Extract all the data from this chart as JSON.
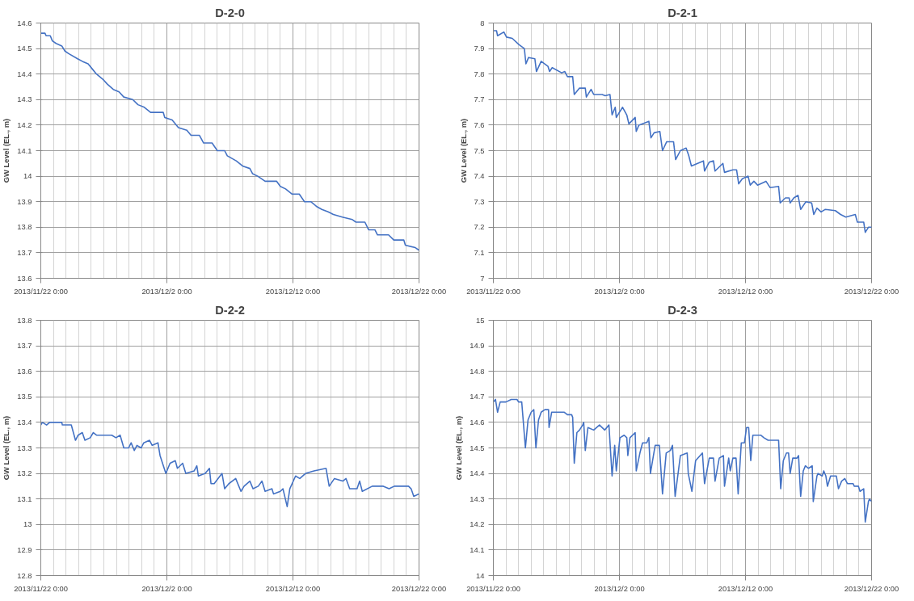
{
  "chart_data": [
    {
      "type": "line",
      "title": "D-2-0",
      "ylabel": "GW Level (EL., m)",
      "grid": true,
      "xlim": [
        "2013-11-22",
        "2013-12-22"
      ],
      "xticks": [
        {
          "value": "2013-11-22",
          "label": "2013/11/22 0:00"
        },
        {
          "value": "2013-12-02",
          "label": "2013/12/2 0:00"
        },
        {
          "value": "2013-12-12",
          "label": "2013/12/12 0:00"
        },
        {
          "value": "2013-12-22",
          "label": "2013/12/22 0:00"
        }
      ],
      "ylim": [
        13.6,
        14.6
      ],
      "yticks": [
        13.6,
        13.7,
        13.8,
        13.9,
        14,
        14.1,
        14.2,
        14.3,
        14.4,
        14.5,
        14.6
      ],
      "series": [
        {
          "color": "#4472c4",
          "x": [
            "2013-11-22T00:00",
            "2013-11-22T08:00",
            "2013-11-22T10:00",
            "2013-11-22T18:00",
            "2013-11-22T22:00",
            "2013-11-23T05:00",
            "2013-11-23T16:00",
            "2013-11-23T22:00",
            "2013-11-24T05:00",
            "2013-11-24T22:00",
            "2013-11-25T07:00",
            "2013-11-25T18:00",
            "2013-11-26T02:00",
            "2013-11-26T10:00",
            "2013-11-26T22:00",
            "2013-11-27T07:00",
            "2013-11-27T18:00",
            "2013-11-28T05:00",
            "2013-11-28T14:00",
            "2013-11-29T07:00",
            "2013-11-29T17:00",
            "2013-11-30T05:00",
            "2013-11-30T17:00",
            "2013-12-01T17:00",
            "2013-12-01T20:00",
            "2013-12-02T10:00",
            "2013-12-02T22:00",
            "2013-12-03T14:00",
            "2013-12-03T22:00",
            "2013-12-04T14:00",
            "2013-12-04T22:00",
            "2013-12-05T14:00",
            "2013-12-06T00:00",
            "2013-12-06T14:00",
            "2013-12-06T19:00",
            "2013-12-07T12:00",
            "2013-12-08T00:00",
            "2013-12-08T14:00",
            "2013-12-08T19:00",
            "2013-12-09T05:00",
            "2013-12-09T19:00",
            "2013-12-10T17:00",
            "2013-12-11T00:00",
            "2013-12-11T10:00",
            "2013-12-11T22:00",
            "2013-12-12T12:00",
            "2013-12-12T22:00",
            "2013-12-13T10:00",
            "2013-12-13T22:00",
            "2013-12-14T07:00",
            "2013-12-14T19:00",
            "2013-12-15T05:00",
            "2013-12-15T22:00",
            "2013-12-16T17:00",
            "2013-12-17T00:00",
            "2013-12-17T17:00",
            "2013-12-18T00:00",
            "2013-12-18T12:00",
            "2013-12-18T17:00",
            "2013-12-19T14:00",
            "2013-12-20T00:00",
            "2013-12-20T19:00",
            "2013-12-20T22:00",
            "2013-12-21T17:00",
            "2013-12-22T00:00"
          ],
          "values": [
            14.56,
            14.56,
            14.55,
            14.55,
            14.53,
            14.52,
            14.51,
            14.49,
            14.48,
            14.46,
            14.45,
            14.44,
            14.42,
            14.4,
            14.38,
            14.36,
            14.34,
            14.33,
            14.31,
            14.3,
            14.28,
            14.27,
            14.25,
            14.25,
            14.23,
            14.22,
            14.19,
            14.18,
            14.16,
            14.16,
            14.13,
            14.13,
            14.1,
            14.1,
            14.08,
            14.06,
            14.04,
            14.03,
            14.01,
            14.0,
            13.98,
            13.98,
            13.96,
            13.95,
            13.93,
            13.93,
            13.9,
            13.9,
            13.88,
            13.87,
            13.86,
            13.85,
            13.84,
            13.83,
            13.82,
            13.82,
            13.79,
            13.79,
            13.77,
            13.77,
            13.75,
            13.75,
            13.73,
            13.72,
            13.71
          ]
        }
      ]
    },
    {
      "type": "line",
      "title": "D-2-1",
      "ylabel": "GW Level (EL., m)",
      "grid": true,
      "xlim": [
        "2013-11-22",
        "2013-12-22"
      ],
      "xticks": [
        {
          "value": "2013-11-22",
          "label": "2013/11/22 0:00"
        },
        {
          "value": "2013-12-02",
          "label": "2013/12/2 0:00"
        },
        {
          "value": "2013-12-12",
          "label": "2013/12/12 0:00"
        },
        {
          "value": "2013-12-22",
          "label": "2013/12/22 0:00"
        }
      ],
      "ylim": [
        7,
        8
      ],
      "yticks": [
        7,
        7.1,
        7.2,
        7.3,
        7.4,
        7.5,
        7.6,
        7.7,
        7.8,
        7.9,
        8
      ],
      "series": [
        {
          "color": "#4472c4",
          "x": [
            "2013-11-22T00:00",
            "2013-11-22T06:00",
            "2013-11-22T08:00",
            "2013-11-22T20:00",
            "2013-11-23T01:00",
            "2013-11-23T12:00",
            "2013-11-24T01:00",
            "2013-11-24T11:00",
            "2013-11-24T14:00",
            "2013-11-24T19:00",
            "2013-11-25T07:00",
            "2013-11-25T10:00",
            "2013-11-25T19:00",
            "2013-11-26T08:00",
            "2013-11-26T11:00",
            "2013-11-26T16:00",
            "2013-11-27T10:00",
            "2013-11-27T16:00",
            "2013-11-27T21:00",
            "2013-11-28T07:00",
            "2013-11-28T10:00",
            "2013-11-28T20:00",
            "2013-11-29T07:00",
            "2013-11-29T09:00",
            "2013-11-29T18:00",
            "2013-11-29T23:00",
            "2013-11-30T15:00",
            "2013-11-30T21:00",
            "2013-12-01T06:00",
            "2013-12-01T10:00",
            "2013-12-01T16:00",
            "2013-12-01T18:00",
            "2013-12-02T06:00",
            "2013-12-02T14:00",
            "2013-12-02T18:00",
            "2013-12-03T06:00",
            "2013-12-03T08:00",
            "2013-12-03T13:00",
            "2013-12-04T08:00",
            "2013-12-04T12:00",
            "2013-12-04T18:00",
            "2013-12-05T05:00",
            "2013-12-05T10:00",
            "2013-12-05T18:00",
            "2013-12-06T07:00",
            "2013-12-06T11:00",
            "2013-12-06T20:00",
            "2013-12-07T07:00",
            "2013-12-07T12:00",
            "2013-12-07T17:00",
            "2013-12-08T16:00",
            "2013-12-08T18:00",
            "2013-12-09T03:00",
            "2013-12-09T11:00",
            "2013-12-09T14:00",
            "2013-12-10T05:00",
            "2013-12-10T08:00",
            "2013-12-11T00:00",
            "2013-12-11T07:00",
            "2013-12-11T11:00",
            "2013-12-11T18:00",
            "2013-12-12T05:00",
            "2013-12-12T09:00",
            "2013-12-12T16:00",
            "2013-12-12T23:00",
            "2013-12-13T15:00",
            "2013-12-13T23:00",
            "2013-12-14T15:00",
            "2013-12-14T18:00",
            "2013-12-15T04:00",
            "2013-12-15T11:00",
            "2013-12-15T13:00",
            "2013-12-15T20:00",
            "2013-12-16T04:00",
            "2013-12-16T09:00",
            "2013-12-16T19:00",
            "2013-12-17T06:00",
            "2013-12-17T10:00",
            "2013-12-17T16:00",
            "2013-12-18T00:00",
            "2013-12-18T08:00",
            "2013-12-19T03:00",
            "2013-12-19T13:00",
            "2013-12-19T23:00",
            "2013-12-20T17:00",
            "2013-12-20T21:00",
            "2013-12-21T09:00",
            "2013-12-21T12:00",
            "2013-12-21T18:00",
            "2013-12-22T00:00"
          ],
          "values": [
            7.97,
            7.97,
            7.95,
            7.965,
            7.945,
            7.94,
            7.915,
            7.9,
            7.84,
            7.865,
            7.86,
            7.81,
            7.85,
            7.83,
            7.81,
            7.825,
            7.805,
            7.81,
            7.79,
            7.79,
            7.72,
            7.745,
            7.745,
            7.71,
            7.74,
            7.72,
            7.72,
            7.715,
            7.72,
            7.64,
            7.67,
            7.63,
            7.67,
            7.64,
            7.605,
            7.63,
            7.575,
            7.6,
            7.615,
            7.55,
            7.57,
            7.575,
            7.5,
            7.535,
            7.535,
            7.465,
            7.5,
            7.51,
            7.48,
            7.44,
            7.46,
            7.42,
            7.455,
            7.46,
            7.42,
            7.45,
            7.415,
            7.425,
            7.425,
            7.37,
            7.39,
            7.4,
            7.365,
            7.38,
            7.365,
            7.38,
            7.355,
            7.36,
            7.295,
            7.315,
            7.315,
            7.295,
            7.315,
            7.325,
            7.27,
            7.3,
            7.295,
            7.25,
            7.275,
            7.26,
            7.27,
            7.265,
            7.25,
            7.24,
            7.25,
            7.22,
            7.22,
            7.18,
            7.2,
            7.2
          ]
        }
      ]
    },
    {
      "type": "line",
      "title": "D-2-2",
      "ylabel": "GW Level (EL., m)",
      "grid": true,
      "xlim": [
        "2013-11-22",
        "2013-12-22"
      ],
      "xticks": [
        {
          "value": "2013-11-22",
          "label": "2013/11/22 0:00"
        },
        {
          "value": "2013-12-02",
          "label": "2013/12/2 0:00"
        },
        {
          "value": "2013-12-12",
          "label": "2013/12/12 0:00"
        },
        {
          "value": "2013-12-22",
          "label": "2013/12/22 0:00"
        }
      ],
      "ylim": [
        12.8,
        13.8
      ],
      "yticks": [
        12.8,
        12.9,
        13,
        13.1,
        13.2,
        13.3,
        13.4,
        13.5,
        13.6,
        13.7,
        13.8
      ],
      "series": [
        {
          "color": "#4472c4",
          "x": [
            "2013-11-22T00:00",
            "2013-11-22T03:00",
            "2013-11-22T11:00",
            "2013-11-22T17:00",
            "2013-11-23T16:00",
            "2013-11-23T17:00",
            "2013-11-24T10:00",
            "2013-11-24T18:00",
            "2013-11-24T23:00",
            "2013-11-25T07:00",
            "2013-11-25T12:00",
            "2013-11-25T22:00",
            "2013-11-26T04:00",
            "2013-11-26T10:00",
            "2013-11-27T15:00",
            "2013-11-27T23:00",
            "2013-11-28T07:00",
            "2013-11-28T14:00",
            "2013-11-28T23:00",
            "2013-11-29T04:00",
            "2013-11-29T10:00",
            "2013-11-29T15:00",
            "2013-11-29T23:00",
            "2013-11-30T04:00",
            "2013-11-30T15:00",
            "2013-11-30T20:00",
            "2013-12-01T07:00",
            "2013-12-01T11:00",
            "2013-12-01T22:00",
            "2013-12-02T06:00",
            "2013-12-02T16:00",
            "2013-12-02T20:00",
            "2013-12-03T06:00",
            "2013-12-03T12:00",
            "2013-12-04T04:00",
            "2013-12-04T09:00",
            "2013-12-04T12:00",
            "2013-12-05T01:00",
            "2013-12-05T09:00",
            "2013-12-05T12:00",
            "2013-12-05T18:00",
            "2013-12-06T09:00",
            "2013-12-06T14:00",
            "2013-12-06T22:00",
            "2013-12-07T11:00",
            "2013-12-07T21:00",
            "2013-12-08T03:00",
            "2013-12-08T14:00",
            "2013-12-08T20:00",
            "2013-12-09T06:00",
            "2013-12-09T13:00",
            "2013-12-09T19:00",
            "2013-12-10T08:00",
            "2013-12-10T11:00",
            "2013-12-11T00:00",
            "2013-12-11T05:00",
            "2013-12-11T13:00",
            "2013-12-11T18:00",
            "2013-12-12T05:00",
            "2013-12-12T13:00",
            "2013-12-13T00:00",
            "2013-12-13T16:00",
            "2013-12-14T15:00",
            "2013-12-14T21:00",
            "2013-12-15T07:00",
            "2013-12-15T23:00",
            "2013-12-16T05:00",
            "2013-12-16T12:00",
            "2013-12-17T02:00",
            "2013-12-17T07:00",
            "2013-12-17T12:00",
            "2013-12-18T07:00",
            "2013-12-19T04:00",
            "2013-12-19T15:00",
            "2013-12-20T01:00",
            "2013-12-21T04:00",
            "2013-12-21T09:00",
            "2013-12-21T14:00",
            "2013-12-22T00:00"
          ],
          "values": [
            13.39,
            13.4,
            13.39,
            13.4,
            13.4,
            13.39,
            13.39,
            13.33,
            13.35,
            13.36,
            13.33,
            13.34,
            13.36,
            13.35,
            13.35,
            13.34,
            13.35,
            13.3,
            13.3,
            13.32,
            13.29,
            13.31,
            13.3,
            13.32,
            13.33,
            13.31,
            13.32,
            13.27,
            13.2,
            13.24,
            13.25,
            13.22,
            13.24,
            13.2,
            13.21,
            13.23,
            13.19,
            13.2,
            13.22,
            13.16,
            13.16,
            13.2,
            13.14,
            13.16,
            13.18,
            13.13,
            13.15,
            13.17,
            13.14,
            13.15,
            13.17,
            13.13,
            13.14,
            13.12,
            13.13,
            13.14,
            13.07,
            13.14,
            13.19,
            13.18,
            13.2,
            13.21,
            13.22,
            13.15,
            13.18,
            13.17,
            13.18,
            13.14,
            13.14,
            13.17,
            13.13,
            13.15,
            13.15,
            13.14,
            13.15,
            13.15,
            13.14,
            13.11,
            13.12
          ]
        }
      ]
    },
    {
      "type": "line",
      "title": "D-2-3",
      "ylabel": "GW Level (EL., m)",
      "grid": true,
      "xlim": [
        "2013-11-22",
        "2013-12-22"
      ],
      "xticks": [
        {
          "value": "2013-11-22",
          "label": "2013/11/22 0:00"
        },
        {
          "value": "2013-12-02",
          "label": "2013/12/2 0:00"
        },
        {
          "value": "2013-12-12",
          "label": "2013/12/12 0:00"
        },
        {
          "value": "2013-12-22",
          "label": "2013/12/22 0:00"
        }
      ],
      "ylim": [
        14,
        15
      ],
      "yticks": [
        14,
        14.1,
        14.2,
        14.3,
        14.4,
        14.5,
        14.6,
        14.7,
        14.8,
        14.9,
        15
      ],
      "series": [
        {
          "color": "#4472c4",
          "x": [
            "2013-11-22T00:00",
            "2013-11-22T04:00",
            "2013-11-22T08:00",
            "2013-11-22T13:00",
            "2013-11-23T00:00",
            "2013-11-23T10:00",
            "2013-11-23T21:00",
            "2013-11-24T00:00",
            "2013-11-24T06:00",
            "2013-11-24T13:00",
            "2013-11-24T18:00",
            "2013-11-25T00:00",
            "2013-11-25T05:00",
            "2013-11-25T09:00",
            "2013-11-25T14:00",
            "2013-11-25T19:00",
            "2013-11-26T02:00",
            "2013-11-26T09:00",
            "2013-11-26T10:00",
            "2013-11-26T15:00",
            "2013-11-27T15:00",
            "2013-11-27T21:00",
            "2013-11-28T05:00",
            "2013-11-28T07:00",
            "2013-11-28T10:00",
            "2013-11-28T15:00",
            "2013-11-28T20:00",
            "2013-11-29T02:00",
            "2013-11-29T04:00",
            "2013-11-29T07:00",
            "2013-11-29T12:00",
            "2013-11-29T23:00",
            "2013-11-30T10:00",
            "2013-11-30T20:00",
            "2013-12-01T04:00",
            "2013-12-01T10:00",
            "2013-12-01T15:00",
            "2013-12-01T18:00",
            "2013-12-02T01:00",
            "2013-12-02T09:00",
            "2013-12-02T14:00",
            "2013-12-02T16:00",
            "2013-12-02T20:00",
            "2013-12-03T06:00",
            "2013-12-03T08:00",
            "2013-12-03T15:00",
            "2013-12-03T20:00",
            "2013-12-04T04:00",
            "2013-12-04T08:00",
            "2013-12-04T11:00",
            "2013-12-04T20:00",
            "2013-12-05T04:00",
            "2013-12-05T10:00",
            "2013-12-05T17:00",
            "2013-12-06T01:00",
            "2013-12-06T05:00",
            "2013-12-06T10:00",
            "2013-12-06T20:00",
            "2013-12-07T09:00",
            "2013-12-07T11:00",
            "2013-12-07T18:00",
            "2013-12-08T01:00",
            "2013-12-08T14:00",
            "2013-12-08T18:00",
            "2013-12-09T03:00",
            "2013-12-09T11:00",
            "2013-12-09T14:00",
            "2013-12-09T22:00",
            "2013-12-10T06:00",
            "2013-12-10T08:00",
            "2013-12-10T16:00",
            "2013-12-10T19:00",
            "2013-12-11T00:00",
            "2013-12-11T06:00",
            "2013-12-11T10:00",
            "2013-12-11T16:00",
            "2013-12-11T22:00",
            "2013-12-12T02:00",
            "2013-12-12T06:00",
            "2013-12-12T10:00",
            "2013-12-12T14:00",
            "2013-12-13T05:00",
            "2013-12-13T11:00",
            "2013-12-13T19:00",
            "2013-12-14T03:00",
            "2013-12-14T15:00",
            "2013-12-14T19:00",
            "2013-12-15T00:00",
            "2013-12-15T06:00",
            "2013-12-15T10:00",
            "2013-12-15T13:00",
            "2013-12-15T18:00",
            "2013-12-16T02:00",
            "2013-12-16T05:00",
            "2013-12-16T09:00",
            "2013-12-16T14:00",
            "2013-12-16T18:00",
            "2013-12-17T00:00",
            "2013-12-17T07:00",
            "2013-12-17T09:00",
            "2013-12-17T16:00",
            "2013-12-17T18:00",
            "2013-12-18T02:00",
            "2013-12-18T05:00",
            "2013-12-18T09:00",
            "2013-12-18T12:00",
            "2013-12-18T18:00",
            "2013-12-19T05:00",
            "2013-12-19T09:00",
            "2013-12-19T15:00",
            "2013-12-19T21:00",
            "2013-12-20T02:00",
            "2013-12-20T13:00",
            "2013-12-20T15:00",
            "2013-12-20T23:00",
            "2013-12-21T02:00",
            "2013-12-21T09:00",
            "2013-12-21T12:00",
            "2013-12-21T18:00",
            "2013-12-21T20:00",
            "2013-12-22T00:00"
          ],
          "values": [
            14.68,
            14.69,
            14.64,
            14.68,
            14.68,
            14.69,
            14.69,
            14.68,
            14.68,
            14.5,
            14.61,
            14.64,
            14.65,
            14.5,
            14.61,
            14.64,
            14.65,
            14.65,
            14.58,
            14.64,
            14.64,
            14.63,
            14.63,
            14.62,
            14.44,
            14.56,
            14.57,
            14.59,
            14.6,
            14.49,
            14.58,
            14.57,
            14.59,
            14.57,
            14.59,
            14.39,
            14.51,
            14.41,
            14.54,
            14.55,
            14.54,
            14.47,
            14.54,
            14.56,
            14.41,
            14.48,
            14.52,
            14.52,
            14.54,
            14.4,
            14.51,
            14.51,
            14.32,
            14.48,
            14.49,
            14.51,
            14.31,
            14.47,
            14.48,
            14.4,
            14.33,
            14.45,
            14.48,
            14.36,
            14.46,
            14.46,
            14.37,
            14.46,
            14.47,
            14.35,
            14.46,
            14.41,
            14.46,
            14.46,
            14.32,
            14.52,
            14.52,
            14.58,
            14.58,
            14.45,
            14.55,
            14.55,
            14.54,
            14.53,
            14.53,
            14.53,
            14.34,
            14.45,
            14.48,
            14.48,
            14.4,
            14.46,
            14.46,
            14.47,
            14.31,
            14.41,
            14.43,
            14.42,
            14.43,
            14.29,
            14.39,
            14.4,
            14.39,
            14.41,
            14.39,
            14.35,
            14.39,
            14.39,
            14.34,
            14.37,
            14.38,
            14.36,
            14.36,
            14.35,
            14.35,
            14.33,
            14.34,
            14.21,
            14.29,
            14.3,
            14.29
          ]
        }
      ]
    }
  ]
}
